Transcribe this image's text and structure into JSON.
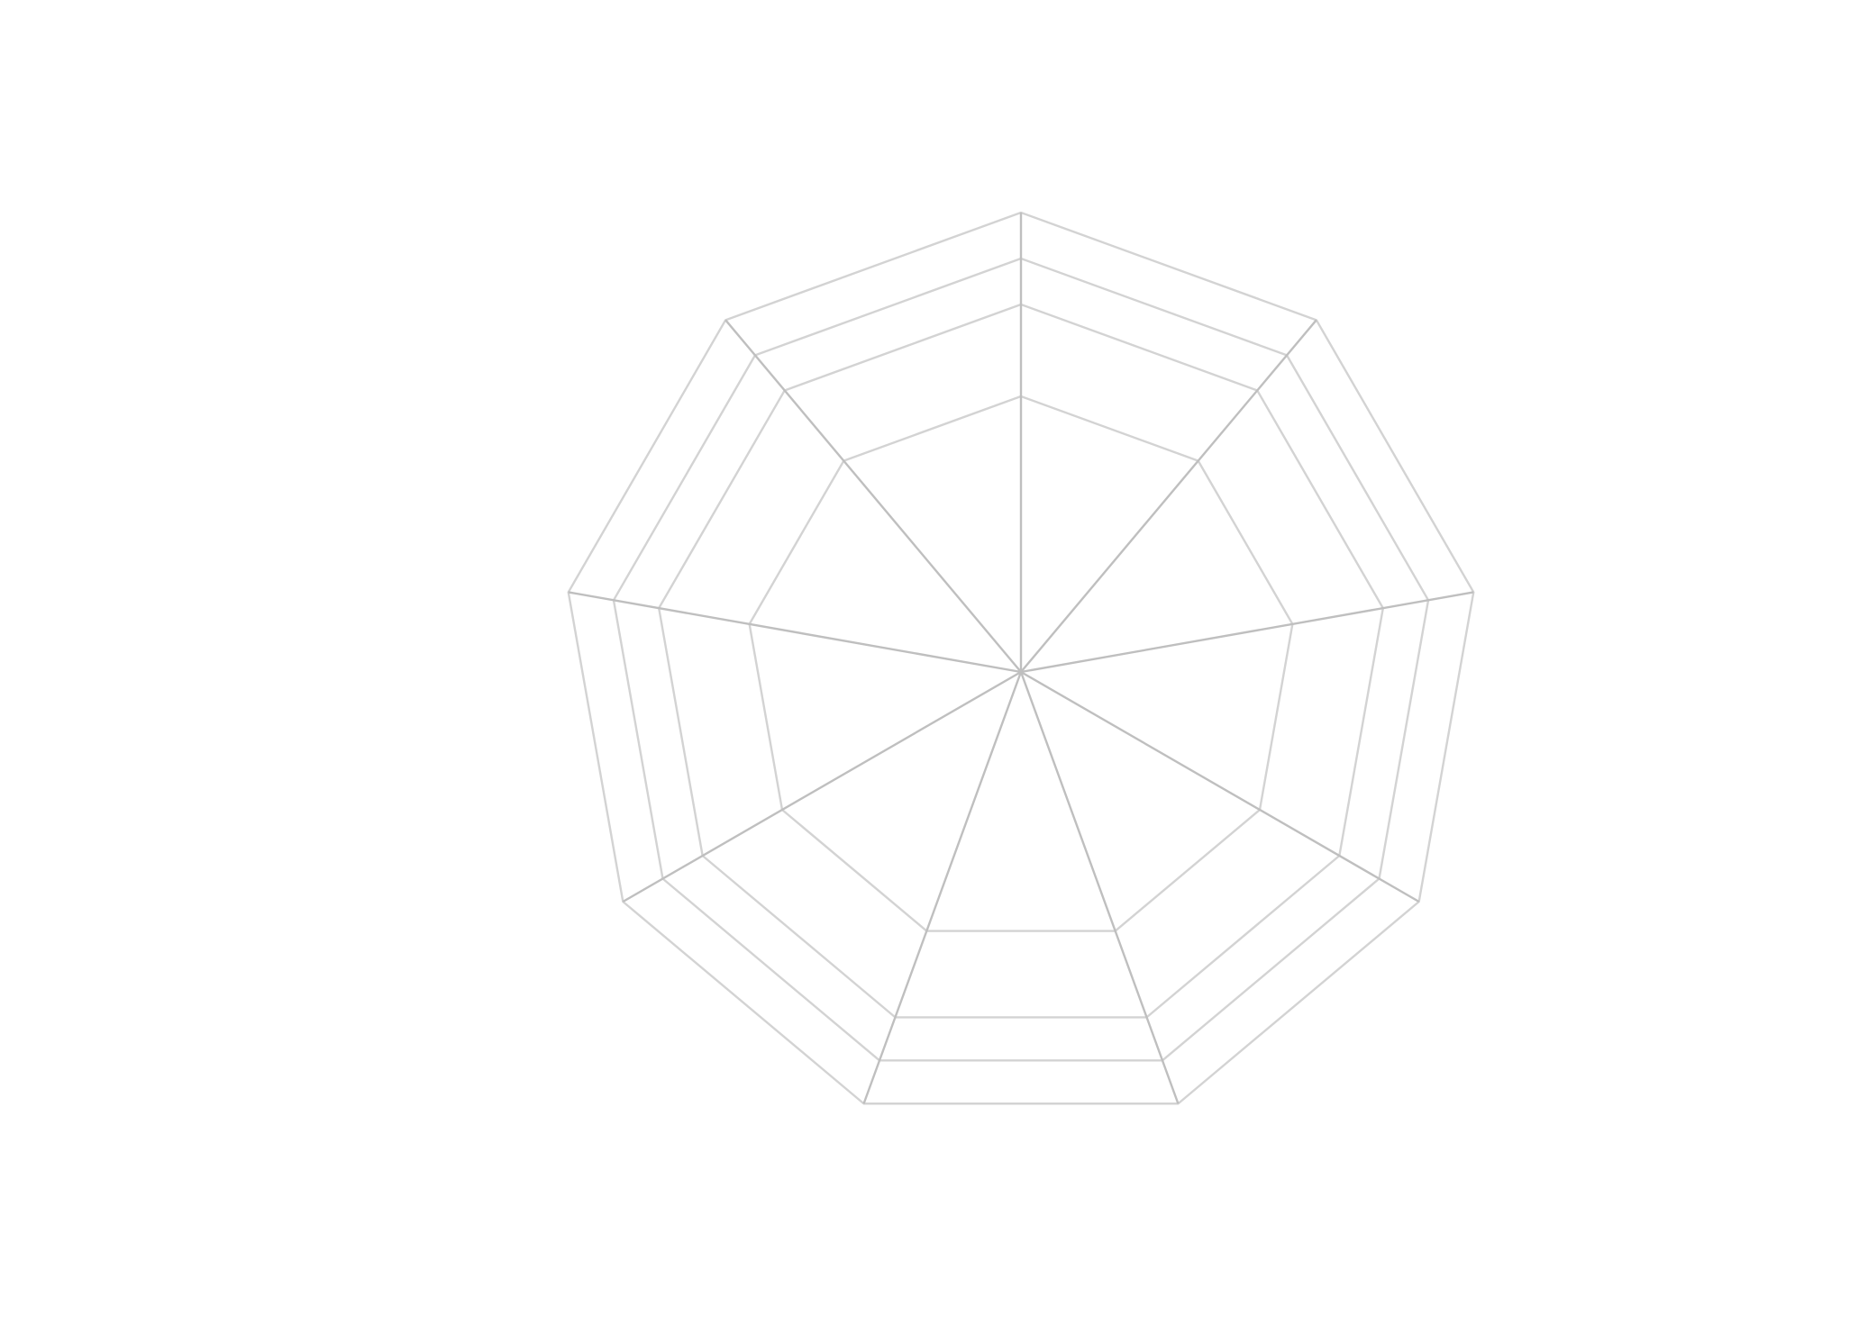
{
  "chart_data": {
    "type": "radar",
    "axis_count": 9,
    "grid_levels": [
      0.6,
      0.8,
      0.9,
      1.0
    ],
    "grid_shape": "polygon",
    "grid": true,
    "legend": "none",
    "series": []
  },
  "colors": {
    "background": "#ffffff",
    "grid_line": "#d3d3d3",
    "spoke_line": "#bfbfbf"
  }
}
